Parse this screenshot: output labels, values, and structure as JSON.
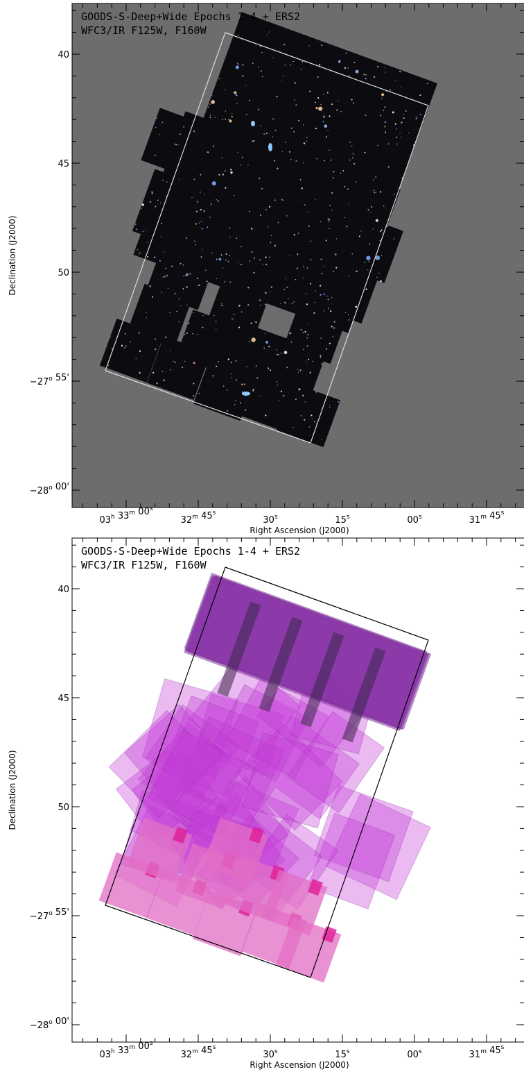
{
  "panels": [
    {
      "title": [
        "GOODS-S-Deep+Wide Epochs 1-4 + ERS2",
        "WFC3/IR F125W, F160W"
      ],
      "x_label": "Right Ascension (J2000)",
      "y_label": "Declination (J2000)",
      "x_ticks": [
        [
          {
            "text": "03",
            "sup": "h"
          },
          {
            "text": " 33",
            "sup": "m"
          },
          {
            "text": " 00",
            "sup": "s"
          }
        ],
        [
          {
            "text": "32",
            "sup": "m"
          },
          {
            "text": " 45",
            "sup": "s"
          }
        ],
        [
          {
            "text": "30",
            "sup": "s"
          }
        ],
        [
          {
            "text": "15",
            "sup": "s"
          }
        ],
        [
          {
            "text": "00",
            "sup": "s"
          }
        ],
        [
          {
            "text": "31",
            "sup": "m"
          },
          {
            "text": " 45",
            "sup": "s"
          }
        ]
      ],
      "y_ticks": [
        [
          {
            "text": "40"
          }
        ],
        [
          {
            "text": "45"
          }
        ],
        [
          {
            "text": "50"
          }
        ],
        [
          {
            "text": "−27",
            "sup": "o"
          },
          {
            "text": " 55'"
          }
        ],
        [
          {
            "text": "−28",
            "sup": "o"
          },
          {
            "text": " 00'"
          }
        ]
      ]
    },
    {
      "title": [
        "GOODS-S-Deep+Wide Epochs 1-4 + ERS2",
        "WFC3/IR F125W, F160W"
      ],
      "x_label": "Right Ascension (J2000)",
      "y_label": "Declination (J2000)",
      "x_ticks": [
        [
          {
            "text": "03",
            "sup": "h"
          },
          {
            "text": " 33",
            "sup": "m"
          },
          {
            "text": " 00",
            "sup": "s"
          }
        ],
        [
          {
            "text": "32",
            "sup": "m"
          },
          {
            "text": " 45",
            "sup": "s"
          }
        ],
        [
          {
            "text": "30",
            "sup": "s"
          }
        ],
        [
          {
            "text": "15",
            "sup": "s"
          }
        ],
        [
          {
            "text": "00",
            "sup": "s"
          }
        ],
        [
          {
            "text": "31",
            "sup": "m"
          },
          {
            "text": " 45",
            "sup": "s"
          }
        ]
      ],
      "y_ticks": [
        [
          {
            "text": "40"
          }
        ],
        [
          {
            "text": "45"
          }
        ],
        [
          {
            "text": "50"
          }
        ],
        [
          {
            "text": "−27",
            "sup": "o"
          },
          {
            "text": " 55'"
          }
        ],
        [
          {
            "text": "−28",
            "sup": "o"
          },
          {
            "text": " 00'"
          }
        ]
      ]
    }
  ]
}
